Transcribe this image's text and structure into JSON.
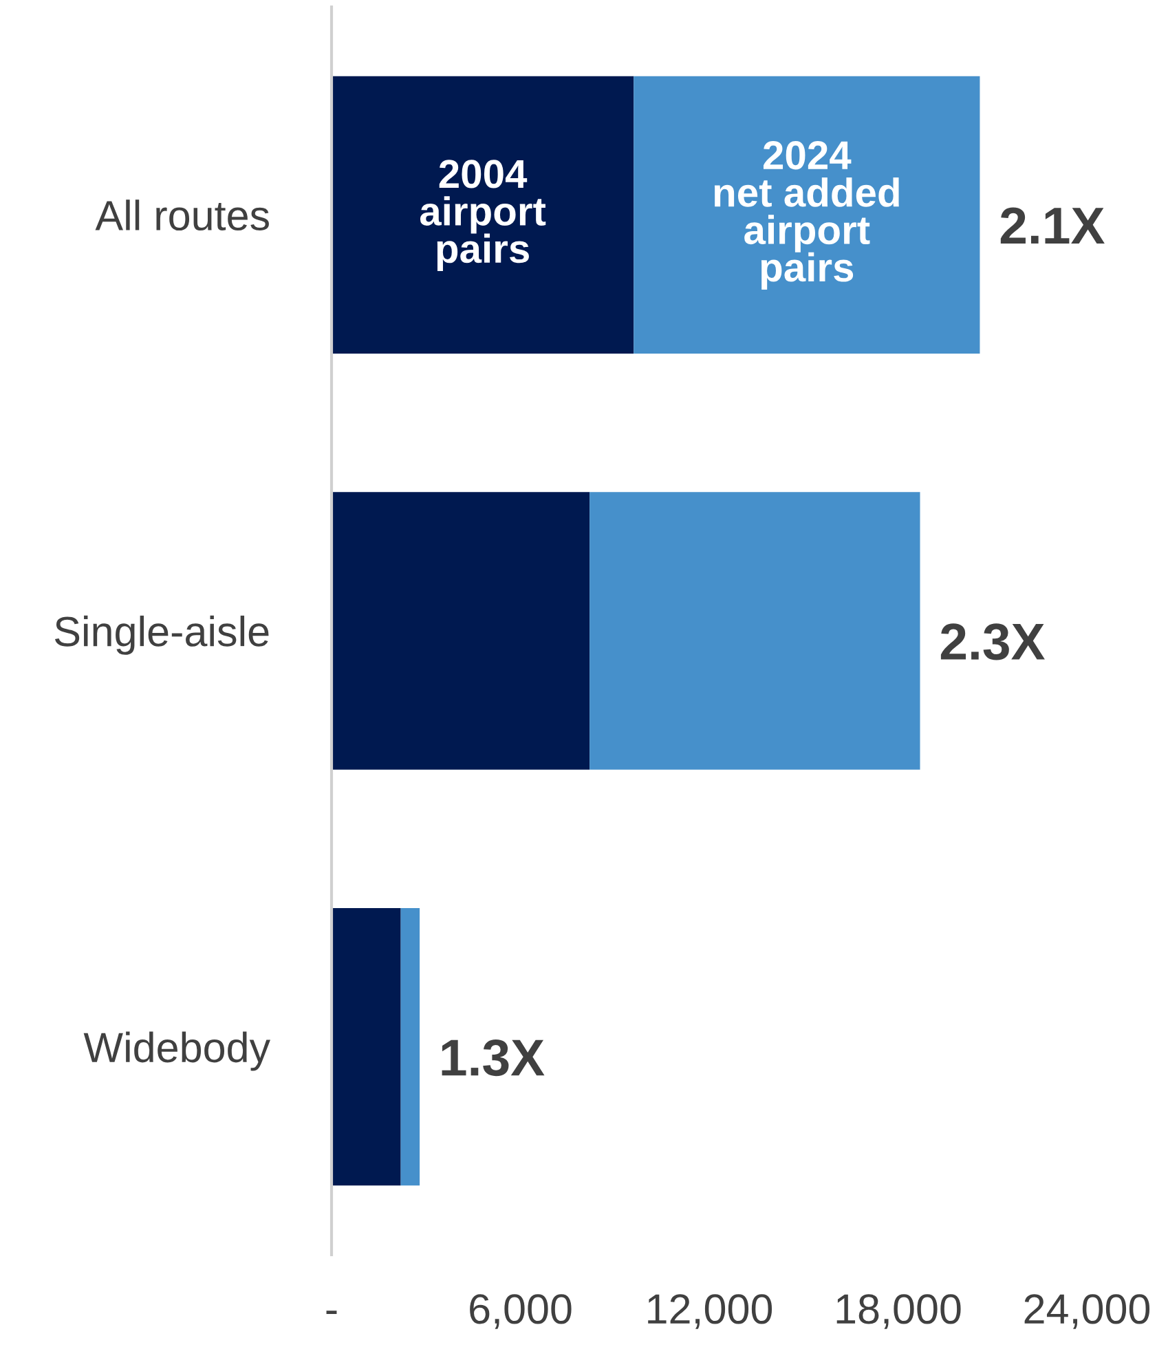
{
  "chart_data": {
    "type": "bar",
    "orientation": "horizontal",
    "stacked": true,
    "categories": [
      "All routes",
      "Single-aisle",
      "Widebody"
    ],
    "series": [
      {
        "name": "2004\nairport\npairs",
        "color": "#001950",
        "values": [
          9600,
          8200,
          2200
        ]
      },
      {
        "name": "2024\nnet added\nairport\npairs",
        "color": "#4690cb",
        "values": [
          11000,
          10500,
          600
        ]
      }
    ],
    "annotations": [
      {
        "text": "2.1X",
        "x": 20600,
        "y": "All routes"
      },
      {
        "text": "2.3X",
        "x": 18700,
        "y": "Single-aisle"
      },
      {
        "text": "1.3X",
        "x": 2800,
        "y": "Widebody"
      }
    ],
    "xlim": [
      0,
      24000
    ],
    "xticks": [
      {
        "value": 0,
        "label": "-"
      },
      {
        "value": 6000,
        "label": "6,000"
      },
      {
        "value": 12000,
        "label": "12,000"
      },
      {
        "value": 18000,
        "label": "18,000"
      },
      {
        "value": 24000,
        "label": "24,000"
      }
    ],
    "grid": false,
    "legend": false
  }
}
